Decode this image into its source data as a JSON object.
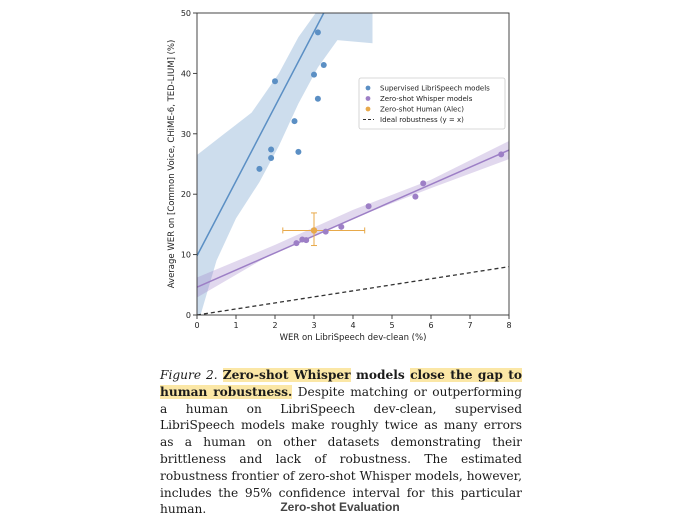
{
  "chart_data": {
    "type": "scatter",
    "xlabel": "WER on LibriSpeech dev-clean (%)",
    "ylabel": "Average WER on [Common Voice, CHiME-6, TED-LIUM] (%)",
    "xlim": [
      0,
      8
    ],
    "ylim": [
      0,
      50
    ],
    "xticks": [
      "0",
      "1",
      "2",
      "3",
      "4",
      "5",
      "6",
      "7",
      "8"
    ],
    "yticks": [
      "0",
      "10",
      "20",
      "30",
      "40",
      "50"
    ],
    "grid": false,
    "legend_position": "top-right",
    "series": [
      {
        "name": "Supervised LibriSpeech models",
        "color": "#5b8fc4",
        "points": [
          [
            1.6,
            24.2
          ],
          [
            1.9,
            27.4
          ],
          [
            1.9,
            26.0
          ],
          [
            2.0,
            38.7
          ],
          [
            2.5,
            32.1
          ],
          [
            2.6,
            27.0
          ],
          [
            3.0,
            39.8
          ],
          [
            3.1,
            35.8
          ],
          [
            3.1,
            46.8
          ],
          [
            3.25,
            41.4
          ]
        ],
        "fit": [
          [
            0,
            9.8
          ],
          [
            3.25,
            50
          ]
        ]
      },
      {
        "name": "Zero-shot Whisper models",
        "color": "#9d7fc6",
        "points": [
          [
            2.55,
            11.9
          ],
          [
            2.7,
            12.5
          ],
          [
            2.8,
            12.4
          ],
          [
            3.3,
            13.8
          ],
          [
            3.7,
            14.6
          ],
          [
            4.4,
            18.0
          ],
          [
            5.6,
            19.6
          ],
          [
            5.8,
            21.8
          ],
          [
            7.8,
            26.6
          ]
        ],
        "fit": [
          [
            0,
            4.6
          ],
          [
            8,
            27.3
          ]
        ]
      },
      {
        "name": "Zero-shot Human (Alec)",
        "color": "#e8a94a",
        "points": [
          [
            3.0,
            14.0
          ]
        ],
        "x_err": [
          2.2,
          4.3
        ],
        "y_err": [
          11.5,
          16.9
        ]
      },
      {
        "name": "Ideal robustness (y = x)",
        "color": "#333333",
        "points": [
          [
            0,
            0
          ],
          [
            8,
            8
          ]
        ]
      }
    ]
  },
  "caption": {
    "figure_label": "Figure 2.",
    "highlight_1": "Zero-shot Whisper",
    "mid_1": " models ",
    "highlight_2": "close the gap to human robustness.",
    "body": " Despite matching or outperforming a human on LibriSpeech dev-clean, supervised LibriSpeech models make roughly twice as many errors as a human on other datasets demonstrating their brittleness and lack of robustness. The estimated robustness frontier of zero-shot Whisper models, however, includes the 95% confidence interval for this particular human."
  },
  "section_heading": "Zero-shot Evaluation"
}
